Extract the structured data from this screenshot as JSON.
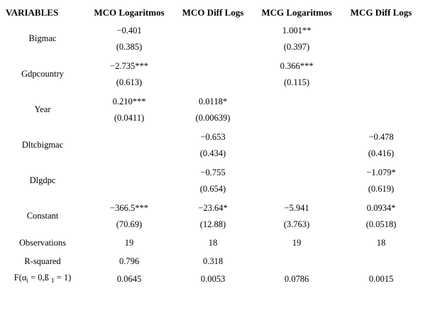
{
  "table": {
    "header": [
      "VARIABLES",
      "MCO Logaritmos",
      "MCO Diff Logs",
      "MCG Logaritmos",
      "MCG Diff Logs"
    ],
    "rows": [
      {
        "label": "Bigmac",
        "coef": [
          "−0.401",
          null,
          "1.001**",
          null
        ],
        "se": [
          "(0.385)",
          null,
          "(0.397)",
          null
        ]
      },
      {
        "label": "Gdpcountry",
        "coef": [
          "−2.735***",
          null,
          "0.366***",
          null
        ],
        "se": [
          "(0.613)",
          null,
          "(0.115)",
          null
        ]
      },
      {
        "label": "Year",
        "coef": [
          "0.210***",
          "0.0118*",
          null,
          null
        ],
        "se": [
          "(0.0411)",
          "(0.00639)",
          null,
          null
        ]
      },
      {
        "label": "Dltcbigmac",
        "coef": [
          null,
          "−0.653",
          null,
          "−0.478"
        ],
        "se": [
          null,
          "(0.434)",
          null,
          "(0.416)"
        ]
      },
      {
        "label": "Dlgdpc",
        "coef": [
          null,
          "−0.755",
          null,
          "−1.079*"
        ],
        "se": [
          null,
          "(0.654)",
          null,
          "(0.619)"
        ]
      },
      {
        "label": "Constant",
        "coef": [
          "−366.5***",
          "−23.64*",
          "−5.941",
          "0.0934*"
        ],
        "se": [
          "(70.69)",
          "(12.88)",
          "(3.763)",
          "(0.0518)"
        ]
      }
    ],
    "stats": [
      {
        "label": [
          "Observations"
        ],
        "values": [
          "19",
          "18",
          "19",
          "18"
        ]
      },
      {
        "label": [
          "R-squared"
        ],
        "values": [
          "0.796",
          "0.318",
          null,
          null
        ]
      },
      {
        "label": [
          "F(α",
          "i",
          " = 0,ß ",
          "1",
          " = 1)"
        ],
        "values": [
          "0.0645",
          "0.0053",
          "0.0786",
          "0.0015"
        ]
      }
    ]
  }
}
